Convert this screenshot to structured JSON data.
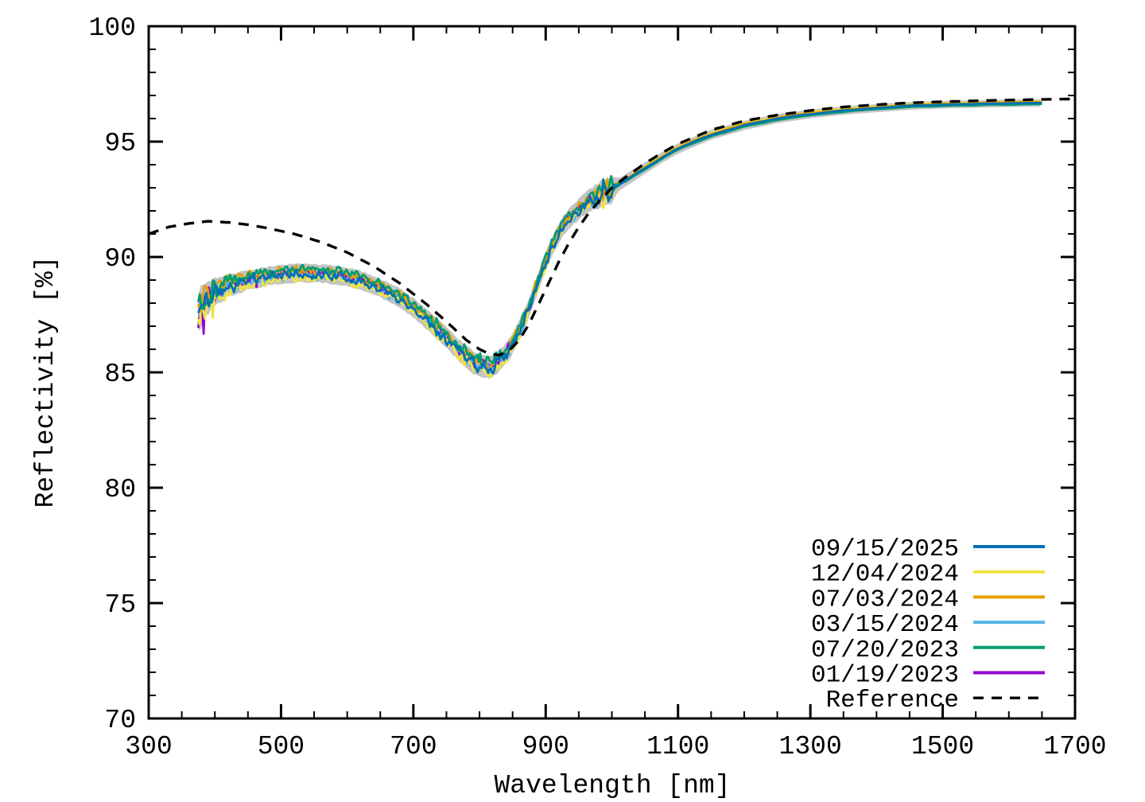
{
  "chart_data": {
    "type": "line",
    "title": "",
    "xlabel": "Wavelength [nm]",
    "ylabel": "Reflectivity [%]",
    "xlim": [
      300,
      1700
    ],
    "ylim": [
      70,
      100
    ],
    "grid": false,
    "legend_position": "bottom-right",
    "x_ticks": {
      "major": [
        300,
        500,
        700,
        900,
        1100,
        1300,
        1500,
        1700
      ],
      "minor_step": 50
    },
    "y_ticks": {
      "major": [
        70,
        75,
        80,
        85,
        90,
        95,
        100
      ],
      "minor_step": 1
    },
    "band_color": "#c4c4c4",
    "reference": {
      "label": "Reference",
      "color": "#000000",
      "style": "dashed",
      "points": [
        [
          300,
          91.0
        ],
        [
          330,
          91.3
        ],
        [
          360,
          91.45
        ],
        [
          390,
          91.55
        ],
        [
          420,
          91.5
        ],
        [
          450,
          91.4
        ],
        [
          480,
          91.25
        ],
        [
          520,
          91.0
        ],
        [
          560,
          90.65
        ],
        [
          600,
          90.2
        ],
        [
          640,
          89.6
        ],
        [
          680,
          88.85
        ],
        [
          720,
          87.95
        ],
        [
          750,
          87.2
        ],
        [
          780,
          86.4
        ],
        [
          800,
          86.0
        ],
        [
          815,
          85.8
        ],
        [
          830,
          85.75
        ],
        [
          845,
          85.95
        ],
        [
          860,
          86.4
        ],
        [
          875,
          87.1
        ],
        [
          890,
          88.0
        ],
        [
          905,
          88.9
        ],
        [
          920,
          89.8
        ],
        [
          935,
          90.6
        ],
        [
          950,
          91.3
        ],
        [
          965,
          91.9
        ],
        [
          980,
          92.4
        ],
        [
          1000,
          93.0
        ],
        [
          1025,
          93.55
        ],
        [
          1050,
          94.05
        ],
        [
          1075,
          94.5
        ],
        [
          1100,
          94.9
        ],
        [
          1150,
          95.5
        ],
        [
          1200,
          95.9
        ],
        [
          1250,
          96.15
        ],
        [
          1300,
          96.35
        ],
        [
          1350,
          96.5
        ],
        [
          1400,
          96.6
        ],
        [
          1450,
          96.68
        ],
        [
          1500,
          96.73
        ],
        [
          1550,
          96.77
        ],
        [
          1600,
          96.8
        ],
        [
          1650,
          96.83
        ],
        [
          1700,
          96.85
        ]
      ]
    },
    "measured_mean_points": [
      [
        375,
        87.6
      ],
      [
        385,
        88.1
      ],
      [
        400,
        88.5
      ],
      [
        415,
        88.7
      ],
      [
        430,
        88.85
      ],
      [
        450,
        89.0
      ],
      [
        475,
        89.15
      ],
      [
        500,
        89.25
      ],
      [
        525,
        89.3
      ],
      [
        550,
        89.3
      ],
      [
        575,
        89.25
      ],
      [
        600,
        89.15
      ],
      [
        625,
        88.95
      ],
      [
        650,
        88.65
      ],
      [
        675,
        88.3
      ],
      [
        700,
        87.8
      ],
      [
        725,
        87.2
      ],
      [
        750,
        86.5
      ],
      [
        775,
        85.8
      ],
      [
        790,
        85.45
      ],
      [
        805,
        85.25
      ],
      [
        815,
        85.2
      ],
      [
        830,
        85.5
      ],
      [
        845,
        86.0
      ],
      [
        860,
        86.8
      ],
      [
        875,
        87.8
      ],
      [
        890,
        89.0
      ],
      [
        900,
        89.8
      ],
      [
        910,
        90.5
      ],
      [
        925,
        91.3
      ],
      [
        940,
        91.8
      ],
      [
        955,
        92.2
      ],
      [
        970,
        92.5
      ],
      [
        985,
        92.75
      ],
      [
        1000,
        92.95
      ],
      [
        1025,
        93.4
      ],
      [
        1050,
        93.85
      ],
      [
        1075,
        94.3
      ],
      [
        1100,
        94.7
      ],
      [
        1150,
        95.3
      ],
      [
        1200,
        95.7
      ],
      [
        1250,
        96.0
      ],
      [
        1300,
        96.2
      ],
      [
        1350,
        96.35
      ],
      [
        1400,
        96.45
      ],
      [
        1450,
        96.55
      ],
      [
        1500,
        96.6
      ],
      [
        1550,
        96.63
      ],
      [
        1600,
        96.66
      ],
      [
        1650,
        96.68
      ]
    ],
    "band_halfwidth_points": [
      [
        375,
        0.85
      ],
      [
        395,
        0.6
      ],
      [
        420,
        0.45
      ],
      [
        450,
        0.4
      ],
      [
        520,
        0.38
      ],
      [
        600,
        0.38
      ],
      [
        700,
        0.4
      ],
      [
        780,
        0.45
      ],
      [
        820,
        0.45
      ],
      [
        860,
        0.4
      ],
      [
        900,
        0.4
      ],
      [
        940,
        0.42
      ],
      [
        975,
        0.5
      ],
      [
        1000,
        0.55
      ],
      [
        1010,
        0.28
      ],
      [
        1050,
        0.24
      ],
      [
        1100,
        0.22
      ],
      [
        1200,
        0.2
      ],
      [
        1350,
        0.18
      ],
      [
        1500,
        0.16
      ],
      [
        1650,
        0.16
      ]
    ],
    "noise_amplitude_points": [
      [
        375,
        0.55
      ],
      [
        390,
        0.42
      ],
      [
        410,
        0.3
      ],
      [
        435,
        0.22
      ],
      [
        460,
        0.18
      ],
      [
        520,
        0.15
      ],
      [
        620,
        0.15
      ],
      [
        700,
        0.16
      ],
      [
        760,
        0.2
      ],
      [
        800,
        0.22
      ],
      [
        830,
        0.22
      ],
      [
        870,
        0.18
      ],
      [
        910,
        0.16
      ],
      [
        950,
        0.18
      ],
      [
        975,
        0.28
      ],
      [
        990,
        0.38
      ],
      [
        1000,
        0.42
      ],
      [
        1005,
        0.05
      ],
      [
        1010,
        0.02
      ],
      [
        1650,
        0.01
      ]
    ],
    "measured_range_nm": [
      375,
      1650
    ],
    "series": [
      {
        "label": "09/15/2025",
        "color": "#0072B2",
        "noisy_offset": -0.05,
        "smooth_offset": 0.0,
        "seed": 11
      },
      {
        "label": "12/04/2024",
        "color": "#F0E442",
        "noisy_offset": -0.18,
        "smooth_offset": 0.07,
        "seed": 22
      },
      {
        "label": "07/03/2024",
        "color": "#E69F00",
        "noisy_offset": 0.12,
        "smooth_offset": 0.04,
        "seed": 33
      },
      {
        "label": "03/15/2024",
        "color": "#56B4E9",
        "noisy_offset": -0.1,
        "smooth_offset": 0.02,
        "seed": 44
      },
      {
        "label": "07/20/2023",
        "color": "#009E73",
        "noisy_offset": 0.18,
        "smooth_offset": -0.05,
        "seed": 55
      },
      {
        "label": "01/19/2023",
        "color": "#9400D3",
        "noisy_offset": 0.03,
        "smooth_offset": -0.02,
        "seed": 66
      }
    ],
    "legend_entries": [
      "09/15/2025",
      "12/04/2024",
      "07/03/2024",
      "03/15/2024",
      "07/20/2023",
      "01/19/2023",
      "Reference"
    ]
  },
  "axis_color": "#000000",
  "background_color": "#ffffff"
}
